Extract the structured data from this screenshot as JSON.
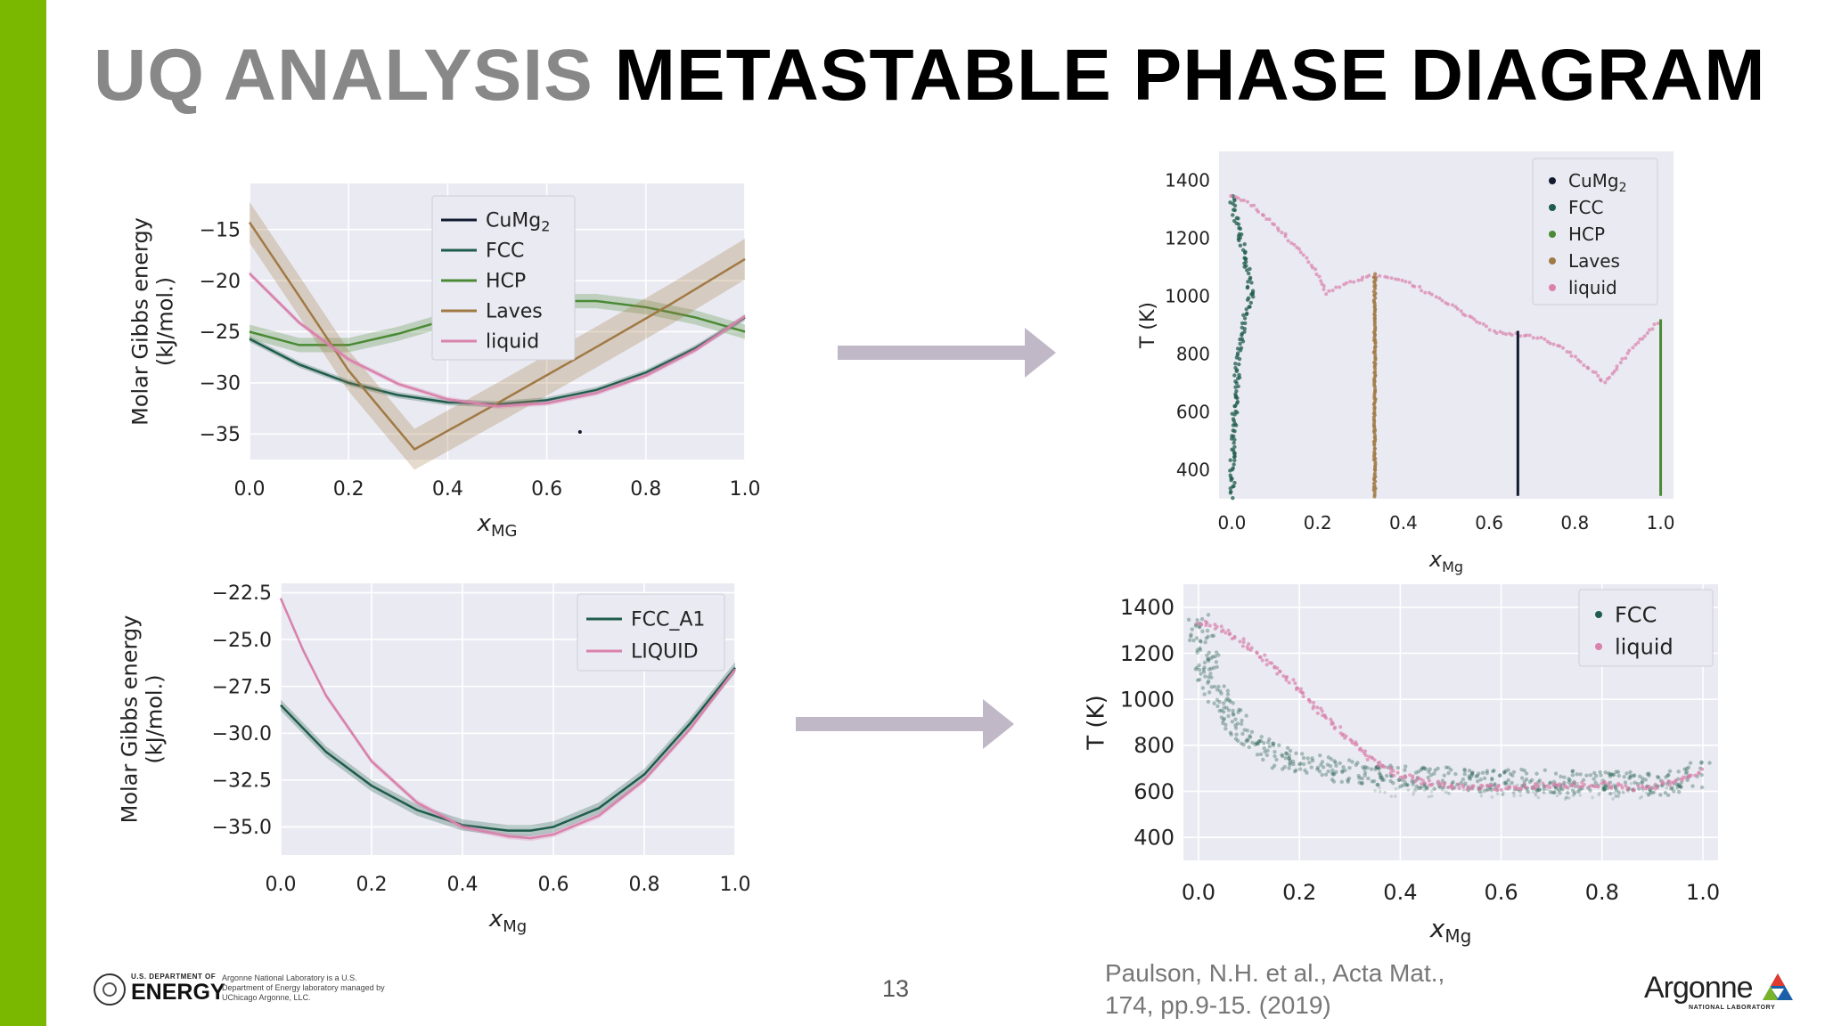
{
  "title": {
    "part1": "UQ ANALYSIS",
    "part2": "METASTABLE PHASE DIAGRAM"
  },
  "colors": {
    "accent": "#7ab800",
    "plot_bg": "#eaeaf2",
    "grid": "#ffffff",
    "CuMg2": "#111a30",
    "FCC": "#1f5c4b",
    "HCP": "#4a8a35",
    "Laves": "#a07a45",
    "liquid": "#d882ac",
    "arrow": "#c0b8c6"
  },
  "footer": {
    "page_number": "13",
    "citation_line1": "Paulson, N.H. et al., Acta Mat.,",
    "citation_line2": "174, pp.9-15. (2019)",
    "doe_small": "U.S. DEPARTMENT OF",
    "doe_big": "ENERGY",
    "doe_desc": "Argonne National Laboratory is a U.S. Department of Energy laboratory managed by UChicago Argonne, LLC.",
    "argonne_name": "Argonne",
    "argonne_sub": "NATIONAL LABORATORY"
  },
  "chart_data": [
    {
      "id": "gibbs-cu-mg",
      "type": "line",
      "xlabel_main": "x",
      "xlabel_sub": "MG",
      "ylabel": [
        "Molar Gibbs energy",
        "(kJ/mol.)"
      ],
      "xlim": [
        0,
        1.0
      ],
      "ylim": [
        -37.5,
        -10.5
      ],
      "xticks": [
        0.0,
        0.2,
        0.4,
        0.6,
        0.8,
        1.0
      ],
      "xtick_labels": [
        "0.0",
        "0.2",
        "0.4",
        "0.6",
        "0.8",
        "1.0"
      ],
      "yticks": [
        -15,
        -20,
        -25,
        -30,
        -35
      ],
      "ytick_labels": [
        "−15",
        "−20",
        "−25",
        "−30",
        "−35"
      ],
      "grid": true,
      "legend": "top-center",
      "series": [
        {
          "name": "CuMg",
          "name_sub": "2",
          "color_key": "CuMg2",
          "kind": "point",
          "x": [
            0.667
          ],
          "y": [
            -34.8
          ],
          "band": 0
        },
        {
          "name": "FCC",
          "name_sub": "",
          "color_key": "FCC",
          "kind": "line",
          "x": [
            0.0,
            0.1,
            0.2,
            0.3,
            0.4,
            0.5,
            0.6,
            0.7,
            0.8,
            0.9,
            1.0
          ],
          "y": [
            -25.7,
            -28.2,
            -30.0,
            -31.2,
            -31.9,
            -32.1,
            -31.7,
            -30.7,
            -29.0,
            -26.6,
            -23.6
          ],
          "band": 0.3
        },
        {
          "name": "HCP",
          "name_sub": "",
          "color_key": "HCP",
          "kind": "line",
          "x": [
            0.0,
            0.1,
            0.2,
            0.3,
            0.4,
            0.5,
            0.6,
            0.7,
            0.8,
            0.9,
            1.0
          ],
          "y": [
            -25.0,
            -26.3,
            -26.3,
            -25.2,
            -23.8,
            -22.6,
            -22.0,
            -22.0,
            -22.6,
            -23.6,
            -25.0
          ],
          "band": 0.7
        },
        {
          "name": "Laves",
          "name_sub": "",
          "color_key": "Laves",
          "kind": "line",
          "x": [
            0.0,
            0.1,
            0.2,
            0.333,
            0.5,
            0.7,
            0.85,
            1.0
          ],
          "y": [
            -14.3,
            -21.5,
            -28.8,
            -36.5,
            -32.0,
            -26.5,
            -22.3,
            -17.9
          ],
          "band": 2.0
        },
        {
          "name": "liquid",
          "name_sub": "",
          "color_key": "liquid",
          "kind": "line",
          "x": [
            0.0,
            0.1,
            0.2,
            0.3,
            0.4,
            0.5,
            0.6,
            0.7,
            0.8,
            0.9,
            1.0
          ],
          "y": [
            -19.3,
            -24.1,
            -27.7,
            -30.1,
            -31.6,
            -32.3,
            -32.0,
            -31.0,
            -29.3,
            -26.8,
            -23.5
          ],
          "band": 0.25
        }
      ]
    },
    {
      "id": "phase-diagram-cu-mg",
      "type": "scatter",
      "xlabel_main": "x",
      "xlabel_sub": "Mg",
      "ylabel": [
        "T (K)"
      ],
      "xlim": [
        -0.03,
        1.03
      ],
      "ylim": [
        300,
        1500
      ],
      "xticks": [
        0.0,
        0.2,
        0.4,
        0.6,
        0.8,
        1.0
      ],
      "xtick_labels": [
        "0.0",
        "0.2",
        "0.4",
        "0.6",
        "0.8",
        "1.0"
      ],
      "yticks": [
        400,
        600,
        800,
        1000,
        1200,
        1400
      ],
      "ytick_labels": [
        "400",
        "600",
        "800",
        "1000",
        "1200",
        "1400"
      ],
      "grid": false,
      "legend": "top-right",
      "series": [
        {
          "name": "CuMg",
          "name_sub": "2",
          "color_key": "CuMg2",
          "x": [
            0.667,
            0.667
          ],
          "y": [
            310,
            880
          ]
        },
        {
          "name": "FCC",
          "name_sub": "",
          "color_key": "FCC",
          "x": [
            0.0,
            0.003,
            0.008,
            0.015,
            0.025,
            0.035,
            0.045,
            0.04,
            0.03,
            0.015,
            0.005,
            0.0
          ],
          "y": [
            310,
            500,
            650,
            780,
            880,
            950,
            1000,
            1060,
            1140,
            1230,
            1300,
            1350
          ]
        },
        {
          "name": "HCP",
          "name_sub": "",
          "color_key": "HCP",
          "x": [
            1.0,
            1.0
          ],
          "y": [
            310,
            920
          ]
        },
        {
          "name": "Laves",
          "name_sub": "",
          "color_key": "Laves",
          "x": [
            0.333,
            0.333
          ],
          "y": [
            310,
            1080
          ]
        },
        {
          "name": "liquid",
          "name_sub": "",
          "color_key": "liquid",
          "x": [
            0.0,
            0.05,
            0.1,
            0.15,
            0.2,
            0.22,
            0.26,
            0.3,
            0.33,
            0.38,
            0.42,
            0.46,
            0.5,
            0.54,
            0.58,
            0.62,
            0.64,
            0.68,
            0.72,
            0.76,
            0.8,
            0.84,
            0.87,
            0.9,
            0.94,
            0.98,
            1.0
          ],
          "y": [
            1350,
            1310,
            1245,
            1170,
            1080,
            1010,
            1040,
            1060,
            1070,
            1060,
            1040,
            1010,
            980,
            940,
            905,
            875,
            870,
            865,
            855,
            830,
            790,
            740,
            700,
            760,
            830,
            890,
            920
          ]
        }
      ]
    },
    {
      "id": "gibbs-fcc-liquid",
      "type": "line",
      "xlabel_main": "x",
      "xlabel_sub": "Mg",
      "ylabel": [
        "Molar Gibbs energy",
        "(kJ/mol.)"
      ],
      "xlim": [
        0,
        1.0
      ],
      "ylim": [
        -36.5,
        -22.0
      ],
      "xticks": [
        0.0,
        0.2,
        0.4,
        0.6,
        0.8,
        1.0
      ],
      "xtick_labels": [
        "0.0",
        "0.2",
        "0.4",
        "0.6",
        "0.8",
        "1.0"
      ],
      "yticks": [
        -22.5,
        -25.0,
        -27.5,
        -30.0,
        -32.5,
        -35.0
      ],
      "ytick_labels": [
        "−22.5",
        "−25.0",
        "−27.5",
        "−30.0",
        "−32.5",
        "−35.0"
      ],
      "grid": true,
      "legend": "top-right",
      "series": [
        {
          "name": "FCC_A1",
          "name_sub": "",
          "color_key": "FCC",
          "kind": "line",
          "x": [
            0.0,
            0.1,
            0.2,
            0.3,
            0.4,
            0.5,
            0.55,
            0.6,
            0.7,
            0.8,
            0.9,
            1.0
          ],
          "y": [
            -28.5,
            -31.0,
            -32.8,
            -34.1,
            -34.9,
            -35.2,
            -35.2,
            -35.0,
            -34.0,
            -32.2,
            -29.5,
            -26.5
          ],
          "band": 0.3
        },
        {
          "name": "LIQUID",
          "name_sub": "",
          "color_key": "liquid",
          "kind": "line",
          "x": [
            0.0,
            0.05,
            0.1,
            0.2,
            0.3,
            0.4,
            0.5,
            0.55,
            0.6,
            0.7,
            0.8,
            0.9,
            1.0
          ],
          "y": [
            -22.8,
            -25.6,
            -28.0,
            -31.5,
            -33.7,
            -35.0,
            -35.5,
            -35.6,
            -35.4,
            -34.4,
            -32.5,
            -29.8,
            -26.6
          ],
          "band": 0.15
        }
      ]
    },
    {
      "id": "phase-diagram-fcc-liquid",
      "type": "scatter",
      "xlabel_main": "x",
      "xlabel_sub": "Mg",
      "ylabel": [
        "T (K)"
      ],
      "xlim": [
        -0.03,
        1.03
      ],
      "ylim": [
        300,
        1500
      ],
      "xticks": [
        0.0,
        0.2,
        0.4,
        0.6,
        0.8,
        1.0
      ],
      "xtick_labels": [
        "0.0",
        "0.2",
        "0.4",
        "0.6",
        "0.8",
        "1.0"
      ],
      "yticks": [
        400,
        600,
        800,
        1000,
        1200,
        1400
      ],
      "ytick_labels": [
        "400",
        "600",
        "800",
        "1000",
        "1200",
        "1400"
      ],
      "grid": true,
      "legend": "top-right",
      "series": [
        {
          "name": "FCC",
          "name_sub": "",
          "color_key": "FCC",
          "x": [
            0.0,
            0.01,
            0.02,
            0.04,
            0.06,
            0.08,
            0.1,
            0.13,
            0.16,
            0.2,
            0.25,
            0.3,
            0.35,
            0.4,
            0.93,
            0.95,
            0.97,
            0.99,
            1.0
          ],
          "y": [
            1340,
            1230,
            1130,
            1020,
            940,
            880,
            830,
            790,
            750,
            720,
            700,
            685,
            670,
            660,
            630,
            645,
            660,
            680,
            690
          ]
        },
        {
          "name": "liquid",
          "name_sub": "",
          "color_key": "liquid",
          "x": [
            0.0,
            0.05,
            0.1,
            0.15,
            0.2,
            0.25,
            0.3,
            0.35,
            0.4,
            0.45,
            0.5,
            0.6,
            0.7,
            0.8,
            0.88,
            0.92,
            0.95,
            0.98,
            1.0
          ],
          "y": [
            1340,
            1300,
            1230,
            1140,
            1040,
            930,
            820,
            730,
            670,
            640,
            620,
            615,
            625,
            630,
            610,
            630,
            650,
            670,
            690
          ]
        }
      ]
    }
  ]
}
